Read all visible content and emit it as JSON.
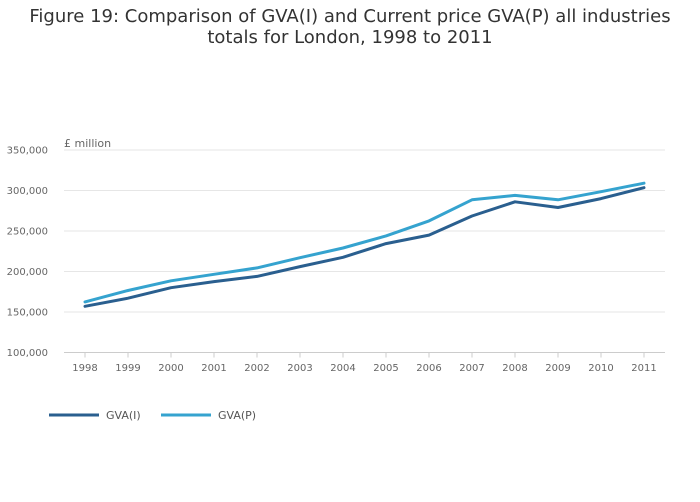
{
  "title_line1": "Figure 19: Comparison of GVA(I) and Current price GVA(P) all industries",
  "title_line2": "totals for London, 1998 to 2011",
  "chart_data": {
    "type": "line",
    "title": "Figure 19: Comparison of GVA(I) and Current price GVA(P) all industries totals for London, 1998 to 2011",
    "ylabel": "£ million",
    "xlabel": "",
    "x": [
      "1998",
      "1999",
      "2000",
      "2001",
      "2002",
      "2003",
      "2004",
      "2005",
      "2006",
      "2007",
      "2008",
      "2009",
      "2010",
      "2011"
    ],
    "ylim": [
      100000,
      350000
    ],
    "yticks": [
      100000,
      150000,
      200000,
      250000,
      300000,
      350000
    ],
    "ytick_labels": [
      "100,000",
      "150,000",
      "200,000",
      "250,000",
      "300,000",
      "350,000"
    ],
    "grid": "horizontal",
    "legend_position": "bottom-left",
    "series": [
      {
        "name": "GVA(I)",
        "color": "#2a5f8f",
        "values": [
          157000,
          167000,
          180000,
          187500,
          194000,
          206000,
          217500,
          234500,
          245000,
          268500,
          286000,
          279000,
          290000,
          303500
        ]
      },
      {
        "name": "GVA(P)",
        "color": "#35a3cf",
        "values": [
          162500,
          176500,
          188500,
          196500,
          204500,
          217000,
          229000,
          244000,
          262500,
          288500,
          294000,
          288500,
          298500,
          309000
        ]
      }
    ]
  }
}
